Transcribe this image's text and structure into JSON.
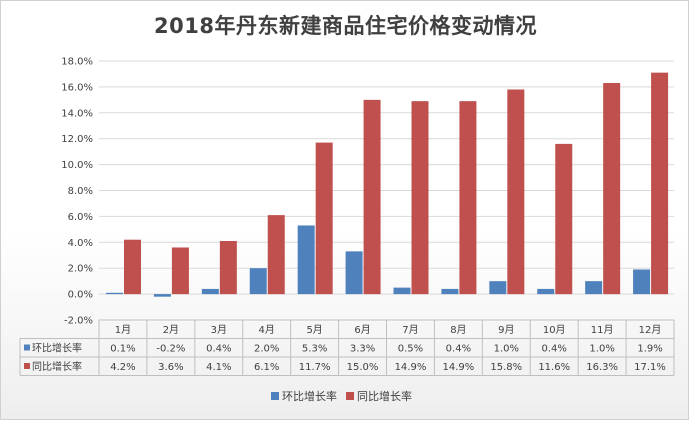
{
  "chart_data": {
    "type": "bar",
    "title": "2018年丹东新建商品住宅价格变动情况",
    "categories": [
      "1月",
      "2月",
      "3月",
      "4月",
      "5月",
      "6月",
      "7月",
      "8月",
      "9月",
      "10月",
      "11月",
      "12月"
    ],
    "series": [
      {
        "name": "环比增长率",
        "color": "#4f81bd",
        "values": [
          0.1,
          -0.2,
          0.4,
          2.0,
          5.3,
          3.3,
          0.5,
          0.4,
          1.0,
          0.4,
          1.0,
          1.9
        ],
        "labels": [
          "0.1%",
          "-0.2%",
          "0.4%",
          "2.0%",
          "5.3%",
          "3.3%",
          "0.5%",
          "0.4%",
          "1.0%",
          "0.4%",
          "1.0%",
          "1.9%"
        ]
      },
      {
        "name": "同比增长率",
        "color": "#c0504d",
        "values": [
          4.2,
          3.6,
          4.1,
          6.1,
          11.7,
          15.0,
          14.9,
          14.9,
          15.8,
          11.6,
          16.3,
          17.1
        ],
        "labels": [
          "4.2%",
          "3.6%",
          "4.1%",
          "6.1%",
          "11.7%",
          "15.0%",
          "14.9%",
          "14.9%",
          "15.8%",
          "11.6%",
          "16.3%",
          "17.1%"
        ]
      }
    ],
    "ylim": [
      -2.0,
      18.0
    ],
    "ytick_values": [
      -2,
      0,
      2,
      4,
      6,
      8,
      10,
      12,
      14,
      16,
      18
    ],
    "ytick_labels": [
      "-2.0%",
      "0.0%",
      "2.0%",
      "4.0%",
      "6.0%",
      "8.0%",
      "10.0%",
      "12.0%",
      "14.0%",
      "16.0%",
      "18.0%"
    ],
    "grid": true,
    "legend_position": "bottom",
    "data_table": true
  }
}
